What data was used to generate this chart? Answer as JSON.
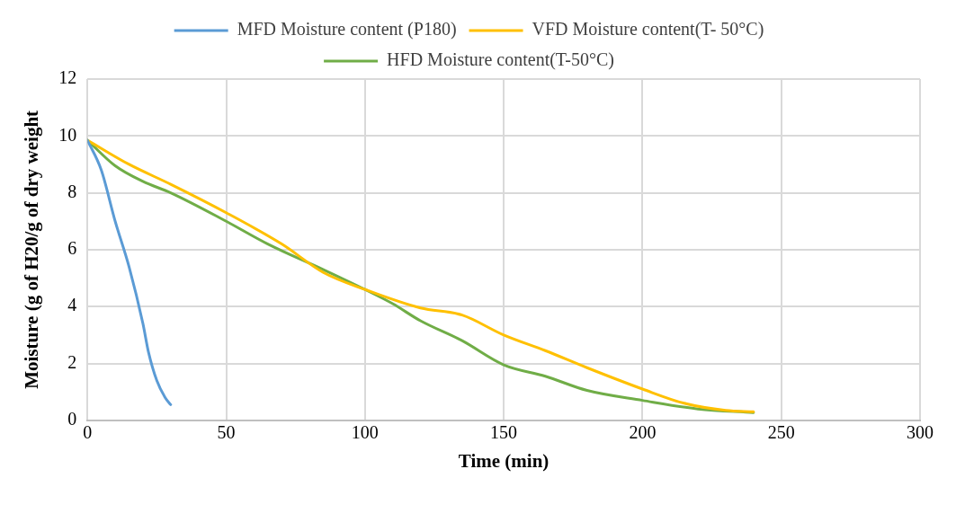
{
  "chart_data": {
    "type": "line",
    "xlabel": "Time (min)",
    "ylabel": "Moisture (g of H20/g of dry weight",
    "xlim": [
      0,
      300
    ],
    "xticks": [
      0,
      50,
      100,
      150,
      200,
      250,
      300
    ],
    "ylim": [
      0,
      12
    ],
    "yticks": [
      0,
      2,
      4,
      6,
      8,
      10,
      12
    ],
    "grid": true,
    "legend": "top",
    "marker": "none",
    "line_style": "solid",
    "series": [
      {
        "name": "MFD Moisture content (P180)",
        "color": "#5b9bd5",
        "x": [
          0,
          5,
          10,
          15,
          20,
          22,
          25,
          28,
          30
        ],
        "values": [
          9.85,
          8.8,
          7.0,
          5.4,
          3.4,
          2.4,
          1.4,
          0.8,
          0.55
        ]
      },
      {
        "name": "VFD Moisture content(T- 50°C)",
        "color": "#ffc000",
        "x": [
          0,
          15,
          30,
          50,
          70,
          85,
          100,
          120,
          135,
          150,
          165,
          180,
          200,
          215,
          230,
          240
        ],
        "values": [
          9.85,
          9.0,
          8.3,
          7.3,
          6.2,
          5.2,
          4.6,
          3.95,
          3.7,
          3.0,
          2.45,
          1.85,
          1.1,
          0.6,
          0.35,
          0.3
        ]
      },
      {
        "name": "HFD Moisture content(T-50°C)",
        "color": "#70ad47",
        "x": [
          0,
          10,
          20,
          30,
          50,
          65,
          85,
          100,
          110,
          120,
          135,
          150,
          165,
          180,
          200,
          220,
          240
        ],
        "values": [
          9.85,
          8.95,
          8.4,
          8.0,
          7.0,
          6.2,
          5.3,
          4.6,
          4.1,
          3.5,
          2.8,
          1.95,
          1.55,
          1.05,
          0.7,
          0.4,
          0.27
        ]
      }
    ]
  }
}
